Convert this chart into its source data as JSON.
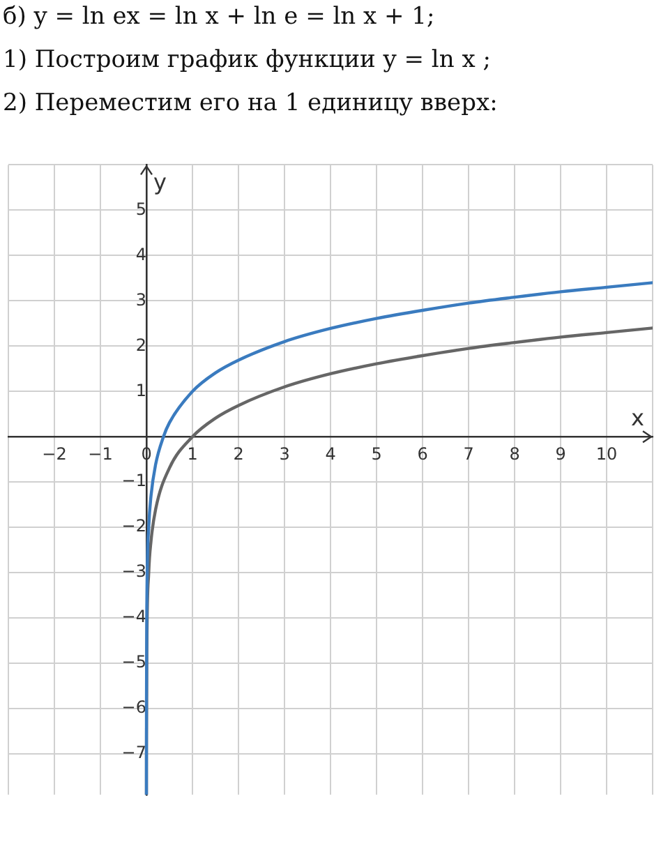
{
  "chart_data": {
    "type": "line",
    "title": "б) y = ln ex = ln x + ln e = ln x + 1;",
    "subtitle": "1) Построим график функции y = ln x ;",
    "annotations": [
      "2) Переместим его на 1 единицу вверх:"
    ],
    "xlabel": "x",
    "ylabel": "y",
    "series": [
      {
        "color": "#3a7bbf",
        "x": [
          0.00014,
          0.0005,
          0.001,
          0.01,
          0.05,
          0.1,
          0.2,
          0.37,
          0.5,
          1,
          1.5,
          2,
          3,
          4,
          5,
          6,
          7,
          8,
          9,
          10,
          11
        ],
        "values": [
          -7.9,
          -6.6,
          -5.9,
          -3.6,
          -2.0,
          -1.3,
          -0.61,
          0,
          0.31,
          1,
          1.41,
          1.69,
          2.1,
          2.39,
          2.61,
          2.79,
          2.95,
          3.08,
          3.2,
          3.3,
          3.4
        ]
      },
      {
        "color": "#666666",
        "x": [
          0.00037,
          0.001,
          0.01,
          0.05,
          0.1,
          0.2,
          0.5,
          1,
          1.5,
          2,
          3,
          4,
          5,
          6,
          7,
          8,
          9,
          10,
          11
        ],
        "values": [
          -7.9,
          -6.9,
          -4.6,
          -3.0,
          -2.3,
          -1.6,
          -0.69,
          0,
          0.41,
          0.69,
          1.1,
          1.39,
          1.61,
          1.79,
          1.95,
          2.08,
          2.2,
          2.3,
          2.4
        ]
      }
    ],
    "xlim": [
      -3,
      11
    ],
    "ylim": [
      -7.9,
      6
    ],
    "xticks": [
      -2,
      -1,
      0,
      1,
      2,
      3,
      4,
      5,
      6,
      7,
      8,
      9,
      10
    ],
    "yticks": [
      -7,
      -6,
      -5,
      -4,
      -3,
      -2,
      -1,
      1,
      2,
      3,
      4,
      5
    ],
    "grid": true,
    "legend": false,
    "marker": "none",
    "line_style": "solid"
  }
}
